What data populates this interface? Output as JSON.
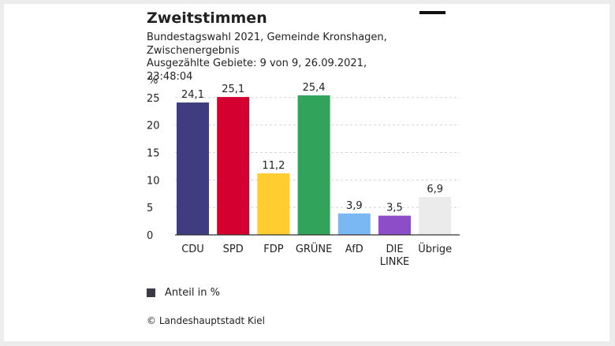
{
  "header": {
    "title": "Zweitstimmen",
    "subtitle_line1": "Bundestagswahl 2021, Gemeinde Kronshagen,",
    "subtitle_line2": "Zwischenergebnis",
    "subtitle_line3": "Ausgezählte Gebiete: 9 von 9, 26.09.2021, 23:48:04"
  },
  "chart_data": {
    "type": "bar",
    "ylabel": "%",
    "ylim": [
      0,
      25.4
    ],
    "yticks": [
      0,
      5,
      10,
      15,
      20,
      25
    ],
    "grid": true,
    "categories": [
      "CDU",
      "SPD",
      "FDP",
      "GRÜNE",
      "AfD",
      "DIE LINKE",
      "Übrige"
    ],
    "values": [
      24.1,
      25.1,
      11.2,
      25.4,
      3.9,
      3.5,
      6.9
    ],
    "value_labels": [
      "24,1",
      "25,1",
      "11,2",
      "25,4",
      "3,9",
      "3,5",
      "6,9"
    ],
    "colors": [
      "#3f3d7f",
      "#d4002f",
      "#ffcd2f",
      "#32a35a",
      "#7ab8f4",
      "#8d4dc9",
      "#ebebeb"
    ],
    "legend": "Anteil in %",
    "legend_position": "bottom-left"
  },
  "footer": {
    "credit": "© Landeshauptstadt Kiel"
  }
}
